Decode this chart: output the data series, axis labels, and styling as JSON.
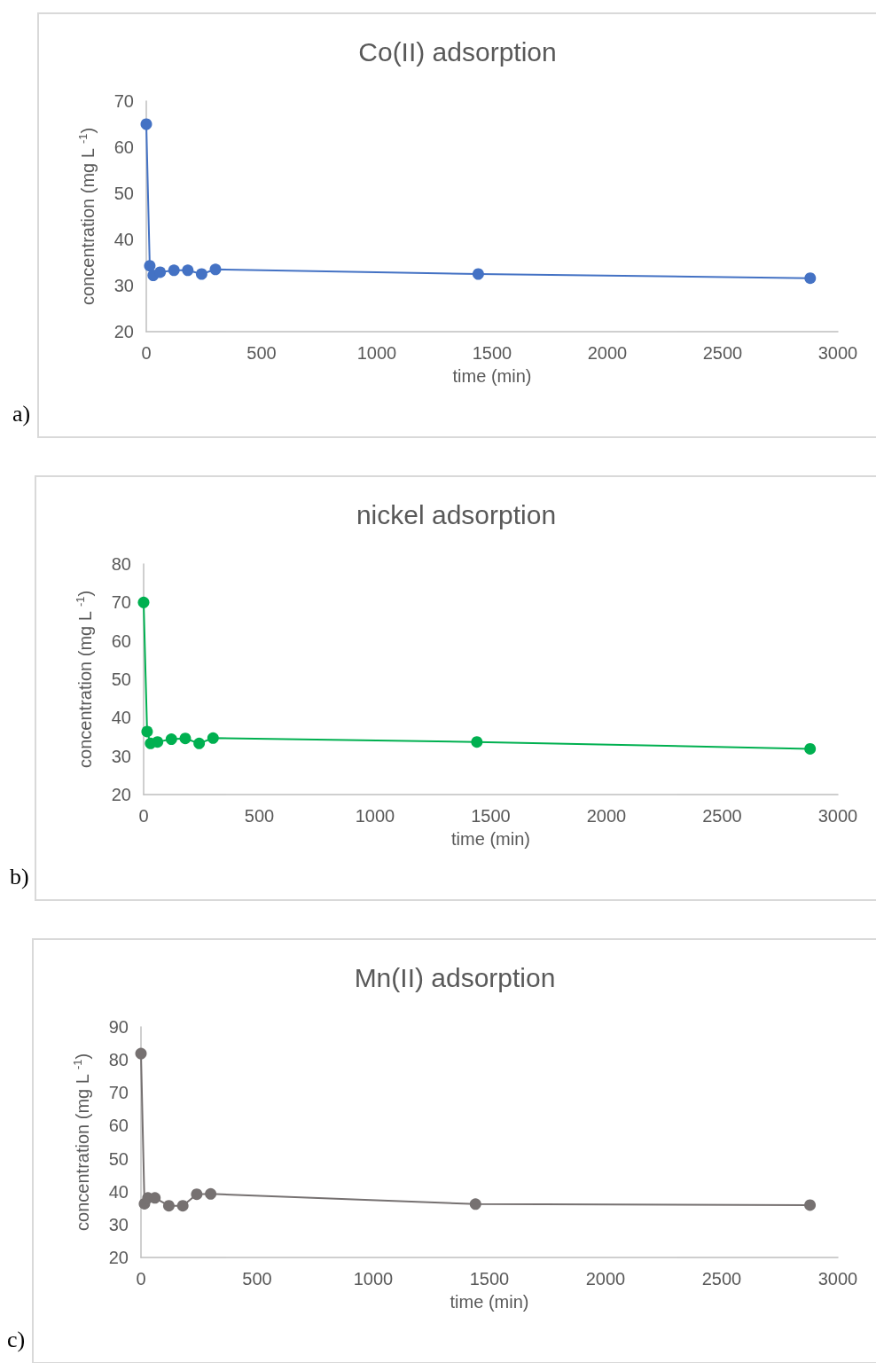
{
  "chart_data": [
    {
      "type": "line",
      "title": "Co(II) adsorption",
      "xlabel": "time (min)",
      "ylabel": "concentration (mg L $^{-1}$)",
      "annotations": [
        "a)"
      ],
      "marker": "circle",
      "grid": false,
      "x": [
        0,
        15,
        30,
        60,
        120,
        180,
        240,
        300,
        1440,
        2880
      ],
      "series": [
        {
          "color": "#4472c4",
          "values": [
            65,
            34.3,
            32.2,
            32.9,
            33.3,
            33.3,
            32.5,
            33.5,
            32.5,
            31.6
          ]
        }
      ],
      "xlim": [
        0,
        3000
      ],
      "xticks": [
        0,
        500,
        1000,
        1500,
        2000,
        2500,
        3000
      ],
      "ylim": [
        20,
        70
      ],
      "yticks": [
        20,
        30,
        40,
        50,
        60,
        70
      ]
    },
    {
      "type": "line",
      "title": "nickel adsorption",
      "xlabel": "time (min)",
      "ylabel": "concentration (mg L $^{-1}$)",
      "annotations": [
        "b)"
      ],
      "marker": "circle",
      "grid": false,
      "x": [
        0,
        15,
        30,
        60,
        120,
        180,
        240,
        300,
        1440,
        2880
      ],
      "series": [
        {
          "color": "#00b050",
          "values": [
            70,
            36.4,
            33.3,
            33.7,
            34.4,
            34.6,
            33.3,
            34.7,
            33.7,
            31.9
          ]
        }
      ],
      "xlim": [
        0,
        3000
      ],
      "xticks": [
        0,
        500,
        1000,
        1500,
        2000,
        2500,
        3000
      ],
      "ylim": [
        20,
        80
      ],
      "yticks": [
        20,
        30,
        40,
        50,
        60,
        70,
        80
      ]
    },
    {
      "type": "line",
      "title": "Mn(II) adsorption",
      "xlabel": "time (min)",
      "ylabel": "concentration (mg L $^{-1}$)",
      "annotations": [
        "c)"
      ],
      "marker": "circle",
      "grid": false,
      "x": [
        0,
        15,
        30,
        60,
        120,
        180,
        240,
        300,
        1440,
        2880
      ],
      "series": [
        {
          "color": "#767171",
          "values": [
            81.9,
            36.3,
            38.1,
            38.1,
            35.7,
            35.7,
            39.2,
            39.3,
            36.2,
            35.9
          ]
        }
      ],
      "xlim": [
        0,
        3000
      ],
      "xticks": [
        0,
        500,
        1000,
        1500,
        2000,
        2500,
        3000
      ],
      "ylim": [
        20,
        90
      ],
      "yticks": [
        20,
        30,
        40,
        50,
        60,
        70,
        80,
        90
      ]
    }
  ]
}
